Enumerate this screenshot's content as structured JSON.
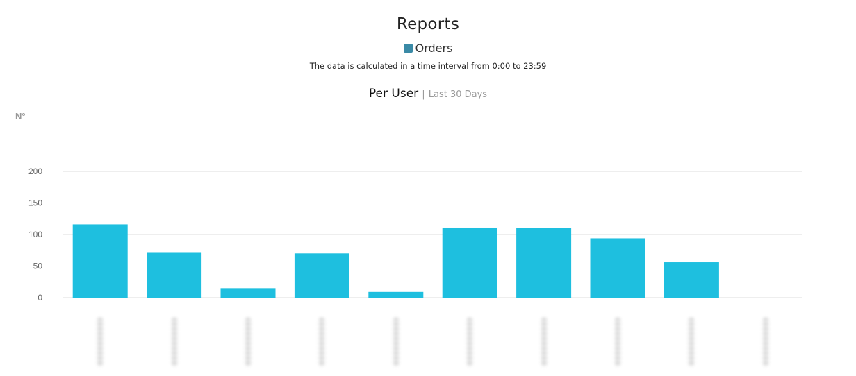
{
  "chart_data": {
    "type": "bar",
    "title": "Reports",
    "legend": [
      {
        "name": "Orders",
        "color": "#3a8aa6"
      }
    ],
    "note": "The data is calculated in a time interval from 0:00 to 23:59",
    "chart_title": "Per User",
    "chart_period": "Last 30 Days",
    "ylabel": "N°",
    "ylim": [
      0,
      200
    ],
    "yticks": [
      0,
      50,
      100,
      150,
      200
    ],
    "bar_color": "#1ebfdf",
    "grid": true,
    "series": [
      {
        "name": "Orders",
        "values": [
          116,
          72,
          15,
          70,
          9,
          111,
          110,
          94,
          56,
          0
        ]
      }
    ]
  }
}
